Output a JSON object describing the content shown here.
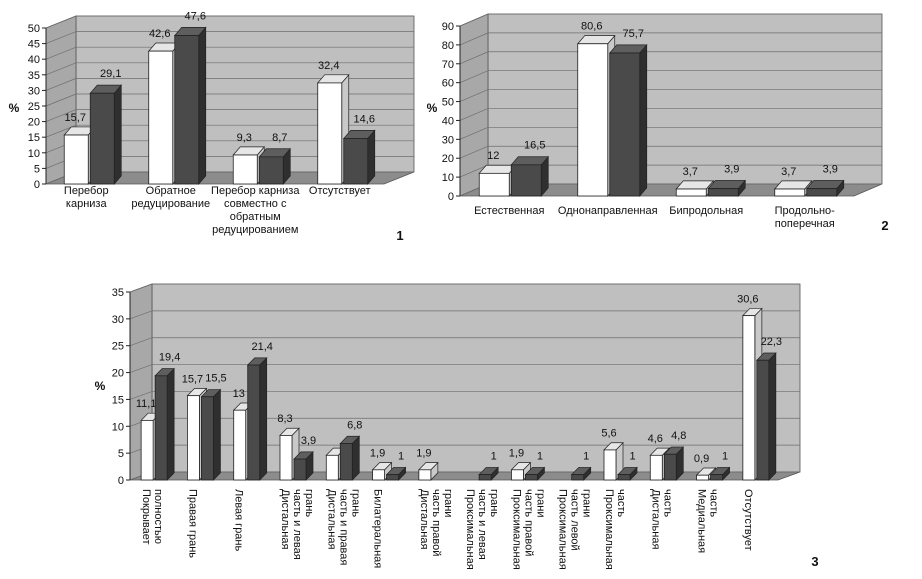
{
  "chart_data": [
    {
      "type": "bar",
      "number": "1",
      "ylabel": "%",
      "ylim": [
        0,
        50
      ],
      "yticks": [
        "0",
        "5",
        "10",
        "15",
        "20",
        "25",
        "30",
        "35",
        "40",
        "45",
        "50"
      ],
      "categories": [
        [
          "Перебор",
          "карниза"
        ],
        [
          "Обратное",
          "редуцирование"
        ],
        [
          "Перебор карниза",
          "совместно с",
          "обратным",
          "редуцированием"
        ],
        [
          "Отсутствует"
        ]
      ],
      "series": [
        {
          "name": "white",
          "values": [
            15.7,
            42.6,
            9.3,
            32.4
          ],
          "labels": [
            "15,7",
            "42,6",
            "9,3",
            "32,4"
          ]
        },
        {
          "name": "dark",
          "values": [
            29.1,
            47.6,
            8.7,
            14.6
          ],
          "labels": [
            "29,1",
            "47,6",
            "8,7",
            "14,6"
          ]
        }
      ]
    },
    {
      "type": "bar",
      "number": "2",
      "ylabel": "%",
      "ylim": [
        0,
        90
      ],
      "yticks": [
        "0",
        "10",
        "20",
        "30",
        "40",
        "50",
        "60",
        "70",
        "80",
        "90"
      ],
      "categories": [
        [
          "Естественная"
        ],
        [
          "Однонаправленная"
        ],
        [
          "Бипродольная"
        ],
        [
          "Продольно-",
          "поперечная"
        ]
      ],
      "series": [
        {
          "name": "white",
          "values": [
            12,
            80.6,
            3.7,
            3.7
          ],
          "labels": [
            "12",
            "80,6",
            "3,7",
            "3,7"
          ]
        },
        {
          "name": "dark",
          "values": [
            16.5,
            75.7,
            3.9,
            3.9
          ],
          "labels": [
            "16,5",
            "75,7",
            "3,9",
            "3,9"
          ]
        }
      ]
    },
    {
      "type": "bar",
      "number": "3",
      "ylabel": "%",
      "ylim": [
        0,
        35
      ],
      "yticks": [
        "0",
        "5",
        "10",
        "15",
        "20",
        "25",
        "30",
        "35"
      ],
      "categories": [
        [
          "Покрывает",
          "полностью"
        ],
        [
          "Правая грань"
        ],
        [
          "Левая грань"
        ],
        [
          "Дистальная",
          "часть и левая",
          "грань"
        ],
        [
          "Дистальная",
          "часть и правая",
          "грань"
        ],
        [
          "Билатеральная"
        ],
        [
          "Дистальная",
          "часть правой",
          "грани"
        ],
        [
          "Проксимальная",
          "часть и левая",
          "грань"
        ],
        [
          "Проксимальная",
          "часть правой",
          "грани"
        ],
        [
          "Проксимальная",
          "часть левой",
          "грани"
        ],
        [
          "Проксимальная",
          "часть"
        ],
        [
          "Дистальная",
          "часть"
        ],
        [
          "Медиальная",
          "часть"
        ],
        [
          "Отсутствует"
        ]
      ],
      "series": [
        {
          "name": "white",
          "values": [
            11.1,
            15.7,
            13,
            8.3,
            4.6,
            1.9,
            1.9,
            0,
            1.9,
            0,
            5.6,
            4.6,
            0.9,
            30.6
          ],
          "labels": [
            "11,1",
            "15,7",
            "13",
            "8,3",
            "",
            "1,9",
            "1,9",
            "",
            "1,9",
            "",
            "5,6",
            "4,6",
            "0,9",
            "30,6"
          ]
        },
        {
          "name": "dark",
          "values": [
            19.4,
            15.5,
            21.4,
            3.9,
            6.8,
            1,
            0,
            1,
            1,
            1,
            1,
            4.8,
            1,
            22.3
          ],
          "labels": [
            "19,4",
            "15,5",
            "21,4",
            "3,9",
            "6,8",
            "1",
            "",
            "1",
            "1",
            "1",
            "1",
            "4,8",
            "1",
            "22,3"
          ]
        }
      ]
    }
  ]
}
